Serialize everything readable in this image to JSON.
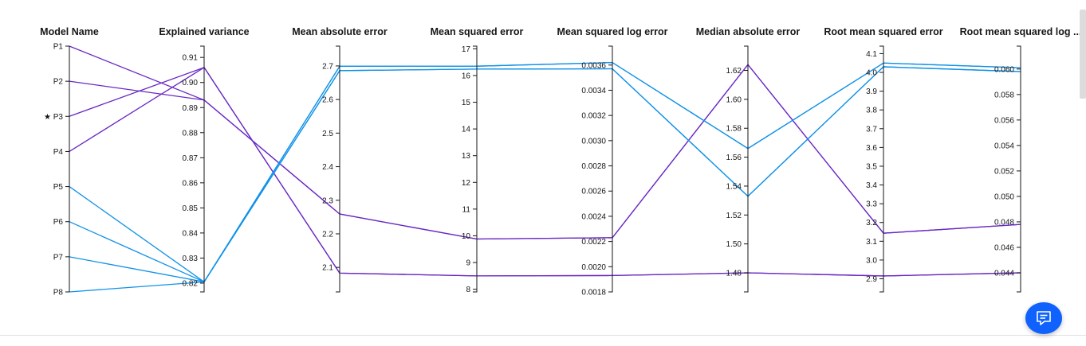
{
  "chart_data": {
    "type": "parallel-coordinates",
    "title": "",
    "dimensions": [
      {
        "key": "model",
        "label": "Model Name",
        "categorical": true,
        "categories": [
          "P1",
          "P2",
          "★ P3",
          "P4",
          "P5",
          "P6",
          "P7",
          "P8"
        ]
      },
      {
        "key": "ev",
        "label": "Explained variance",
        "range": [
          0.8165,
          0.9145
        ],
        "ticks": [
          "0.82",
          "0.83",
          "0.84",
          "0.85",
          "0.86",
          "0.87",
          "0.88",
          "0.89",
          "0.90",
          "0.91"
        ]
      },
      {
        "key": "mae",
        "label": "Mean absolute error",
        "range": [
          2.027,
          2.759
        ],
        "ticks": [
          "2.1",
          "2.2",
          "2.3",
          "2.4",
          "2.5",
          "2.6",
          "2.7"
        ]
      },
      {
        "key": "mse",
        "label": "Mean squared error",
        "range": [
          7.9,
          17.1
        ],
        "ticks": [
          "8",
          "9",
          "10",
          "11",
          "12",
          "13",
          "14",
          "15",
          "16",
          "17"
        ]
      },
      {
        "key": "msle",
        "label": "Mean squared log error",
        "range": [
          0.0018,
          0.00375
        ],
        "ticks": [
          "0.0018",
          "0.0020",
          "0.0022",
          "0.0024",
          "0.0026",
          "0.0028",
          "0.0030",
          "0.0032",
          "0.0034",
          "0.0036"
        ]
      },
      {
        "key": "medae",
        "label": "Median absolute error",
        "range": [
          1.4668,
          1.6368
        ],
        "ticks": [
          "1.48",
          "1.50",
          "1.52",
          "1.54",
          "1.56",
          "1.58",
          "1.60",
          "1.62"
        ]
      },
      {
        "key": "rmse",
        "label": "Root mean squared error",
        "range": [
          2.83,
          4.14
        ],
        "ticks": [
          "2.9",
          "3.0",
          "3.1",
          "3.2",
          "3.3",
          "3.4",
          "3.5",
          "3.6",
          "3.7",
          "3.8",
          "3.9",
          "4.0",
          "4.1"
        ]
      },
      {
        "key": "rmsle",
        "label": "Root mean squared log ...",
        "range": [
          0.0425,
          0.0618
        ],
        "ticks": [
          "0.044",
          "0.046",
          "0.048",
          "0.050",
          "0.052",
          "0.054",
          "0.056",
          "0.058",
          "0.060"
        ]
      }
    ],
    "series": [
      {
        "model": 0,
        "color": "#6929c4",
        "values": {
          "ev": 0.893,
          "mae": 2.259,
          "mse": 9.88,
          "msle": 0.00223,
          "medae": 1.624,
          "rmse": 3.143,
          "rmsle": 0.0478
        }
      },
      {
        "model": 1,
        "color": "#6929c4",
        "values": {
          "ev": 0.893,
          "mae": 2.259,
          "mse": 9.88,
          "msle": 0.00223,
          "medae": 1.624,
          "rmse": 3.143,
          "rmsle": 0.0478
        }
      },
      {
        "model": 2,
        "color": "#6929c4",
        "values": {
          "ev": 0.906,
          "mae": 2.083,
          "mse": 8.5,
          "msle": 0.00193,
          "medae": 1.48,
          "rmse": 2.915,
          "rmsle": 0.044
        }
      },
      {
        "model": 3,
        "color": "#6929c4",
        "values": {
          "ev": 0.906,
          "mae": 2.083,
          "mse": 8.5,
          "msle": 0.00193,
          "medae": 1.48,
          "rmse": 2.915,
          "rmsle": 0.044
        }
      },
      {
        "model": 4,
        "color": "#1192e8",
        "values": {
          "ev": 0.8205,
          "mae": 2.699,
          "mse": 16.35,
          "msle": 0.00362,
          "medae": 1.566,
          "rmse": 4.05,
          "rmsle": 0.0601
        }
      },
      {
        "model": 5,
        "color": "#1192e8",
        "values": {
          "ev": 0.8205,
          "mae": 2.699,
          "mse": 16.35,
          "msle": 0.00362,
          "medae": 1.566,
          "rmse": 4.05,
          "rmsle": 0.0601
        }
      },
      {
        "model": 6,
        "color": "#1192e8",
        "values": {
          "ev": 0.8205,
          "mae": 2.686,
          "mse": 16.24,
          "msle": 0.00357,
          "medae": 1.533,
          "rmse": 4.03,
          "rmsle": 0.0598
        }
      },
      {
        "model": 7,
        "color": "#1192e8",
        "values": {
          "ev": 0.8205,
          "mae": 2.686,
          "mse": 16.24,
          "msle": 0.00357,
          "medae": 1.533,
          "rmse": 4.03,
          "rmsle": 0.0598
        }
      }
    ]
  },
  "feedback": {
    "icon": "chat-icon",
    "color": "#0f62fe"
  }
}
